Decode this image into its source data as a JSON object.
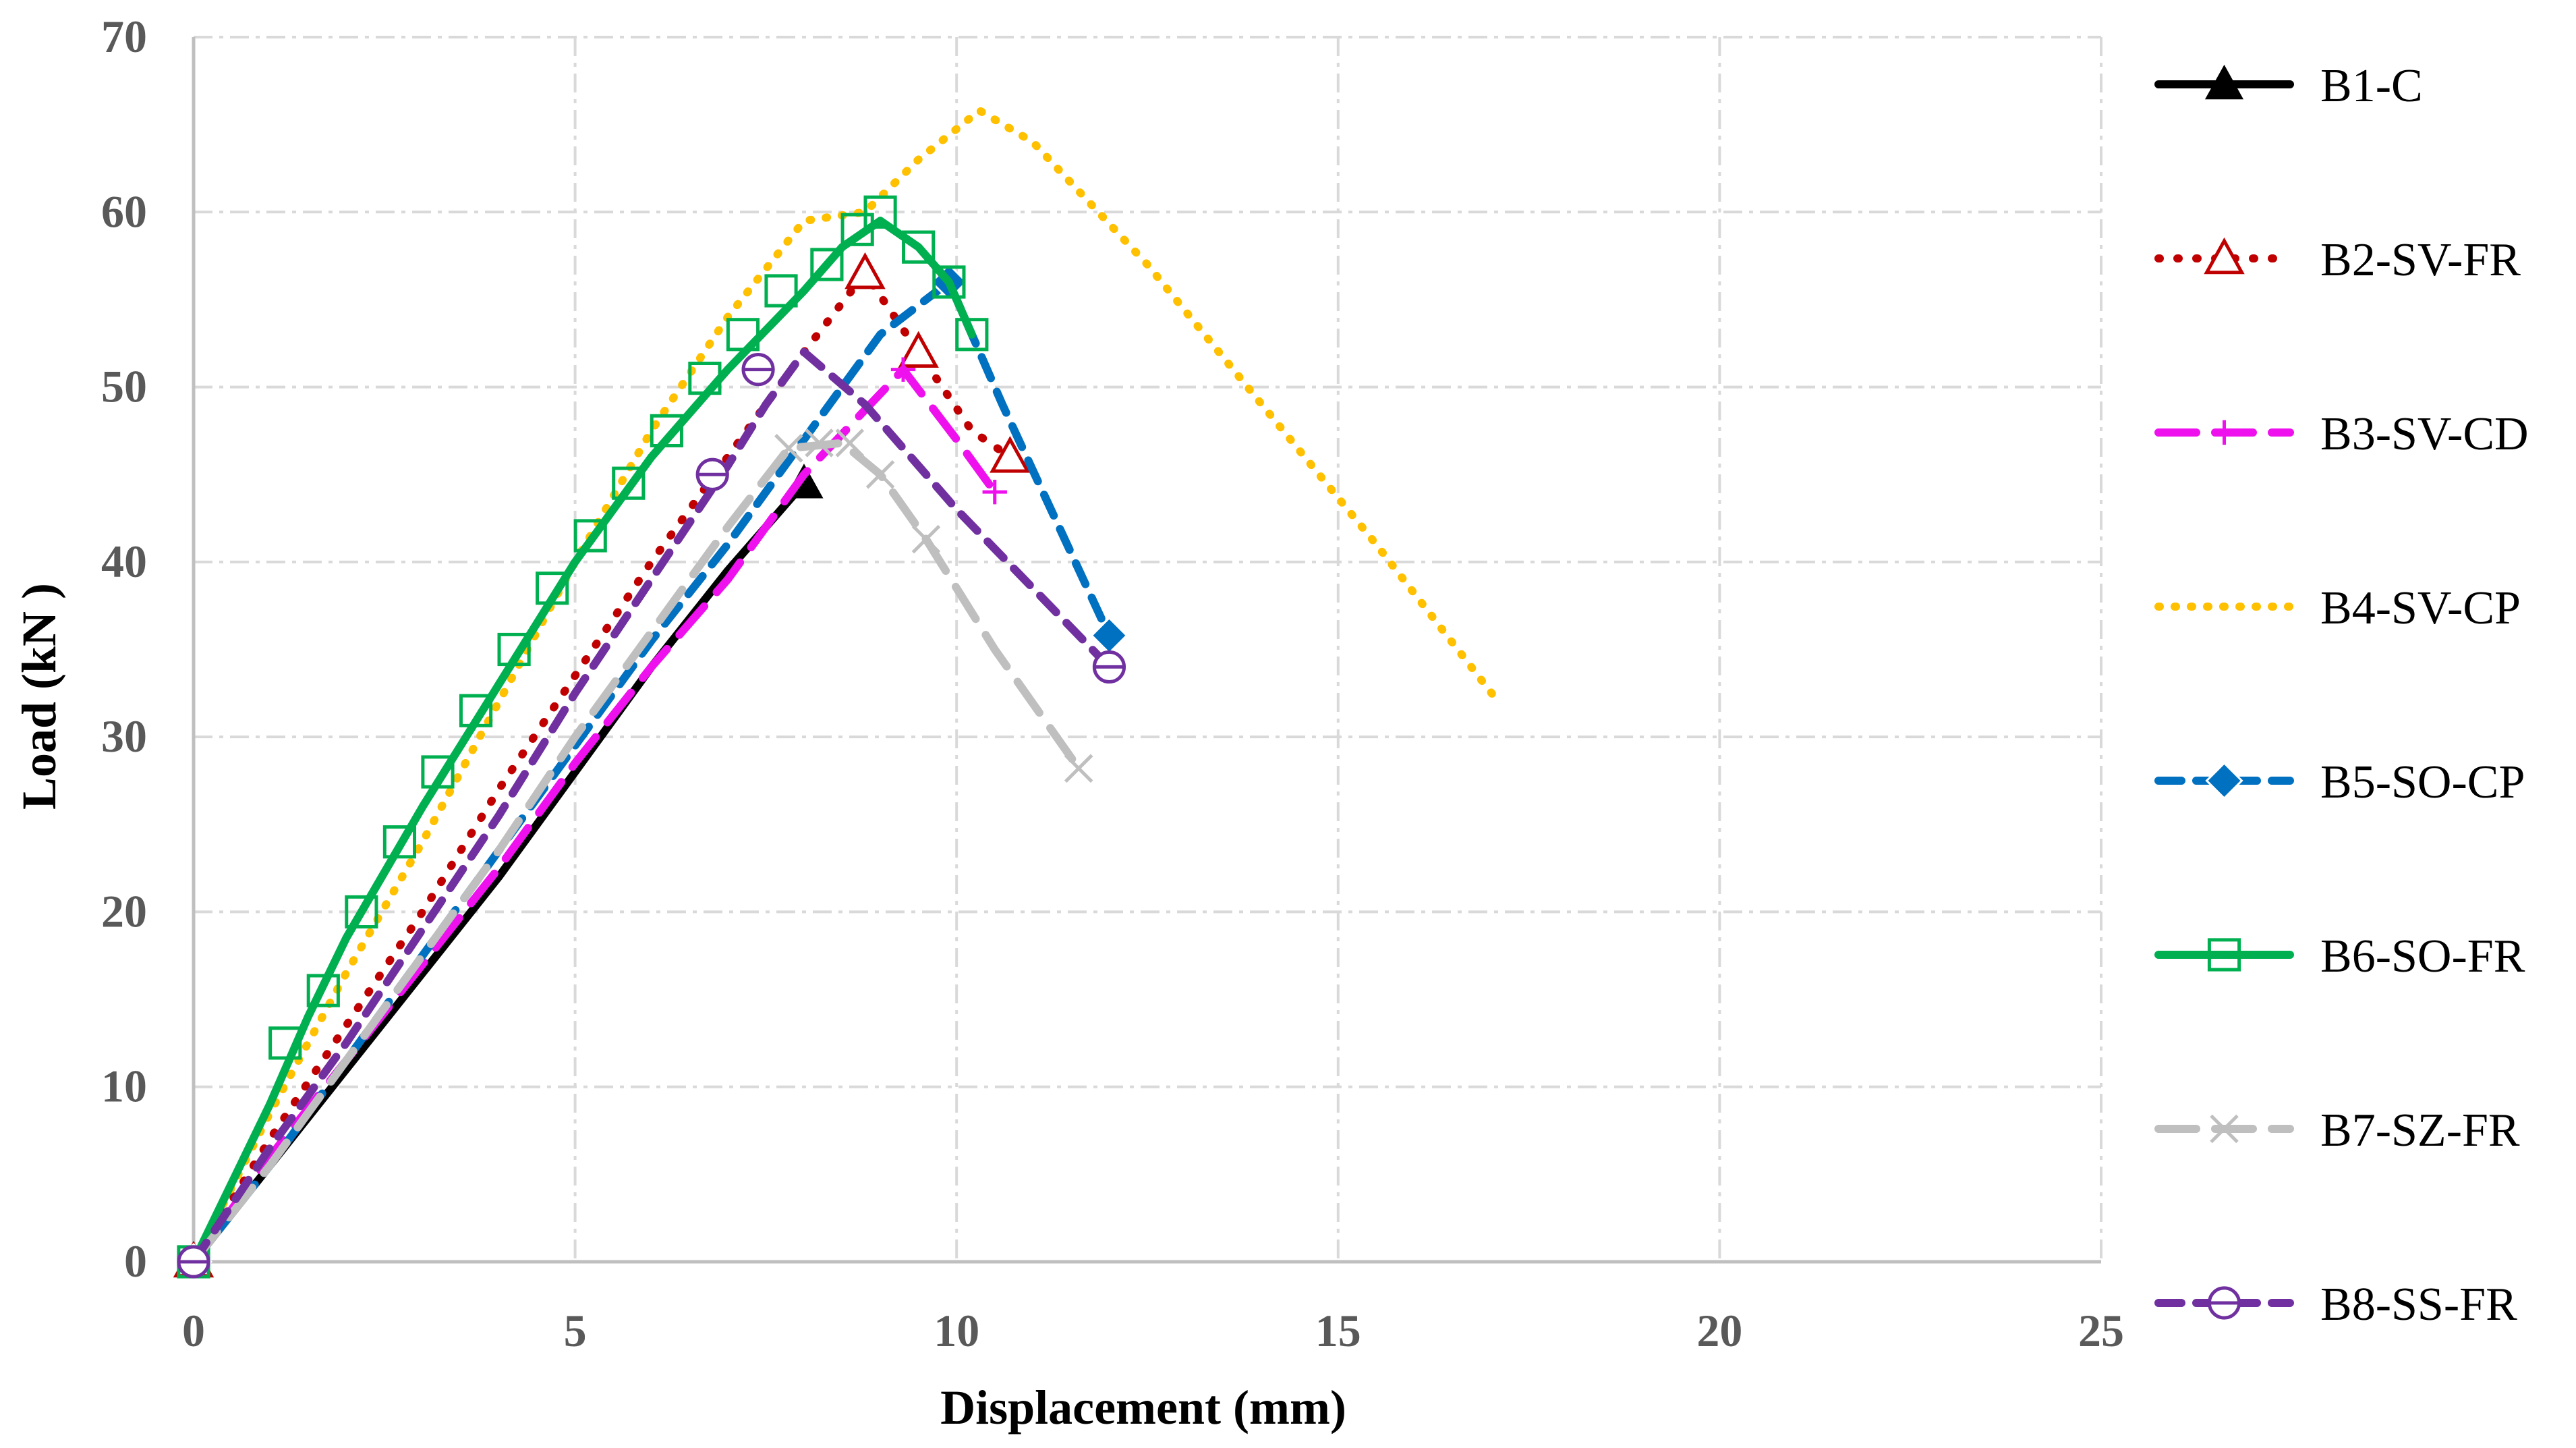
{
  "chart_data": {
    "type": "line",
    "title": "",
    "xlabel": "Displacement  (mm)",
    "ylabel": "Load (kN )",
    "xlim": [
      0,
      25
    ],
    "ylim": [
      0,
      70
    ],
    "xticks": [
      0,
      5,
      10,
      15,
      20,
      25
    ],
    "yticks": [
      0,
      10,
      20,
      30,
      40,
      50,
      60,
      70
    ],
    "grid": true,
    "legend_position": "right",
    "series": [
      {
        "name": "B1-C",
        "color": "#000000",
        "dash": "solid",
        "marker": "filled-triangle",
        "x": [
          0,
          1,
          2,
          3,
          4,
          5,
          6,
          7,
          7.6,
          8.0
        ],
        "y": [
          0,
          5.5,
          11,
          16.5,
          22,
          28,
          34,
          39.5,
          42.5,
          44.5
        ],
        "marker_x": [
          0,
          8.0
        ],
        "marker_y": [
          0,
          44.5
        ]
      },
      {
        "name": "B2-SV-FR",
        "color": "#C00000",
        "dash": "round-dot",
        "marker": "open-triangle",
        "x": [
          0,
          1,
          2,
          3,
          4,
          5,
          6,
          7,
          8,
          8.8,
          9.5,
          10.2,
          10.7
        ],
        "y": [
          0,
          7,
          13.5,
          20,
          27,
          33.5,
          40,
          46,
          52,
          56.5,
          52,
          47.5,
          46
        ],
        "marker_x": [
          0,
          8.8,
          9.5,
          10.7
        ],
        "marker_y": [
          0,
          56.5,
          52,
          46
        ]
      },
      {
        "name": "B3-SV-CD",
        "color": "#EE11EE",
        "dash": "long-dash",
        "marker": "plus",
        "x": [
          0,
          1,
          2,
          3,
          4,
          5,
          6,
          7,
          8,
          9.3,
          10.0,
          10.5
        ],
        "y": [
          0,
          6,
          11.5,
          17,
          22.5,
          28.5,
          34,
          39,
          45,
          51,
          47,
          44
        ],
        "marker_x": [
          9.3,
          10.5
        ],
        "marker_y": [
          51,
          44
        ]
      },
      {
        "name": "B4-SV-CP",
        "color": "#FFC000",
        "dash": "dotted",
        "marker": "none",
        "x": [
          0,
          1,
          2,
          3,
          4,
          5,
          6,
          7,
          8,
          8.8,
          9.5,
          10.3,
          11.0,
          12.5,
          14.0,
          15.5,
          17.1
        ],
        "y": [
          0,
          8.5,
          16.5,
          24,
          32,
          40,
          47.5,
          54,
          59.5,
          60,
          63,
          65.8,
          64,
          57,
          49,
          41,
          32
        ]
      },
      {
        "name": "B5-SO-CP",
        "color": "#0070C0",
        "dash": "dashed",
        "marker": "filled-diamond",
        "x": [
          0,
          1,
          2,
          3,
          4,
          5,
          6,
          7,
          8,
          9,
          9.9,
          10.6,
          12.0
        ],
        "y": [
          0,
          5.5,
          11.5,
          17.5,
          23.5,
          29.5,
          35.5,
          41,
          47,
          53,
          56,
          49,
          35.8
        ],
        "marker_x": [
          0,
          9.9,
          12.0
        ],
        "marker_y": [
          0,
          56,
          35.8
        ]
      },
      {
        "name": "B6-SO-FR",
        "color": "#00B050",
        "dash": "solid",
        "marker": "open-square",
        "x": [
          0,
          1,
          1.5,
          2,
          3,
          4,
          5,
          6,
          7,
          8,
          8.5,
          9,
          9.5,
          9.9,
          10.2
        ],
        "y": [
          0,
          9,
          14,
          18.5,
          26,
          33,
          40,
          46,
          51,
          55.5,
          58,
          59.5,
          58,
          56,
          53
        ],
        "marker_x": [
          0,
          1.2,
          1.7,
          2.2,
          2.7,
          3.2,
          3.7,
          4.2,
          4.7,
          5.2,
          5.7,
          6.2,
          6.7,
          7.2,
          7.7,
          8.3,
          8.7,
          9.0,
          9.5,
          9.9,
          10.2
        ],
        "marker_y": [
          0,
          12.5,
          15.5,
          20,
          24,
          28,
          31.5,
          35,
          38.5,
          41.5,
          44.5,
          47.5,
          50.5,
          53,
          55.5,
          57,
          59,
          60,
          58,
          56,
          53
        ]
      },
      {
        "name": "B7-SZ-FR",
        "color": "#BFBFBF",
        "dash": "long-dash",
        "marker": "x",
        "x": [
          0,
          1,
          2,
          3,
          4,
          5,
          6,
          7,
          7.8,
          8.5,
          9.0,
          9.6,
          10.5,
          11.6
        ],
        "y": [
          0,
          5.5,
          11.5,
          17.5,
          23.5,
          30,
          36,
          42,
          46.5,
          46.8,
          45,
          41.3,
          35,
          28.2
        ],
        "marker_x": [
          7.8,
          8.2,
          8.6,
          9.0,
          9.6,
          11.6
        ],
        "marker_y": [
          46.5,
          46.8,
          46.8,
          45,
          41.3,
          28.2
        ]
      },
      {
        "name": "B8-SS-FR",
        "color": "#7030A0",
        "dash": "dashed",
        "marker": "circle-bar",
        "x": [
          0,
          1,
          2,
          3,
          4,
          5,
          6,
          7,
          7.5,
          8.0,
          8.8,
          10.0,
          12.0
        ],
        "y": [
          0,
          6.5,
          12.5,
          19,
          25.5,
          32.5,
          39,
          45.5,
          49,
          52,
          49,
          43,
          34
        ],
        "marker_x": [
          0,
          6.8,
          7.4,
          12.0
        ],
        "marker_y": [
          0,
          45,
          51,
          34
        ]
      }
    ]
  }
}
